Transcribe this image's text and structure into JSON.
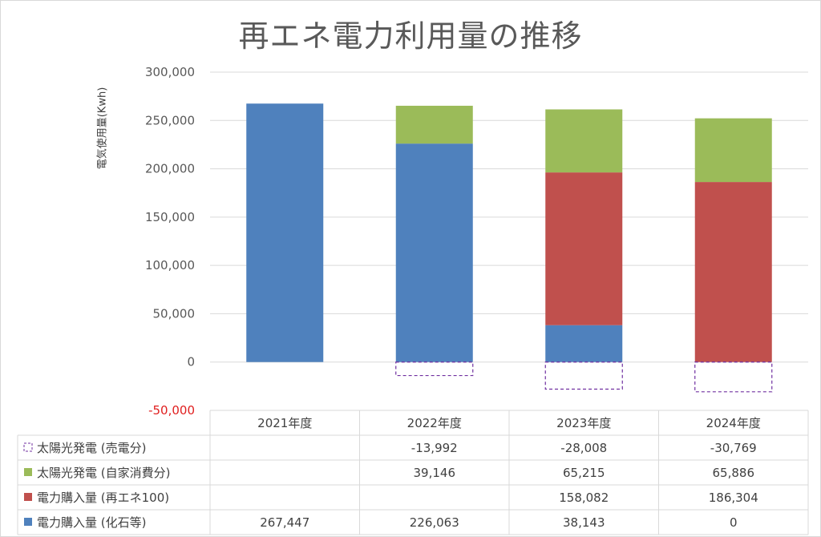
{
  "title": "再エネ電力利用量の推移",
  "chart_data": {
    "type": "bar",
    "stacked": true,
    "title": "再エネ電力利用量の推移",
    "ylabel": "電気使用量(Kwh)",
    "xlabel": "",
    "ylim": [
      -50000,
      300000
    ],
    "yticks": [
      300000,
      250000,
      200000,
      150000,
      100000,
      50000,
      0,
      -50000
    ],
    "ytick_labels": [
      "300,000",
      "250,000",
      "200,000",
      "150,000",
      "100,000",
      "50,000",
      "0",
      "-50,000"
    ],
    "negative_tick_color": "#ff0000",
    "grid": true,
    "categories": [
      "2021年度",
      "2022年度",
      "2023年度",
      "2024年度"
    ],
    "series": [
      {
        "name": "太陽光発電 (売電分)",
        "color": "#7030a0",
        "style": "dashed-outline",
        "values": [
          null,
          -13992,
          -28008,
          -30769
        ],
        "labels": [
          "",
          "-13,992",
          "-28,008",
          "-30,769"
        ]
      },
      {
        "name": "太陽光発電 (自家消費分)",
        "color": "#9bbb59",
        "style": "fill",
        "values": [
          null,
          39146,
          65215,
          65886
        ],
        "labels": [
          "",
          "39,146",
          "65,215",
          "65,886"
        ]
      },
      {
        "name": "電力購入量 (再エネ100)",
        "color": "#c0504d",
        "style": "fill",
        "values": [
          null,
          null,
          158082,
          186304
        ],
        "labels": [
          "",
          "",
          "158,082",
          "186,304"
        ]
      },
      {
        "name": "電力購入量 (化石等)",
        "color": "#4f81bd",
        "style": "fill",
        "values": [
          267447,
          226063,
          38143,
          0
        ],
        "labels": [
          "267,447",
          "226,063",
          "38,143",
          "0"
        ]
      }
    ],
    "stack_order": [
      3,
      2,
      1
    ],
    "data_table": true,
    "legend_placement": "in data table"
  }
}
